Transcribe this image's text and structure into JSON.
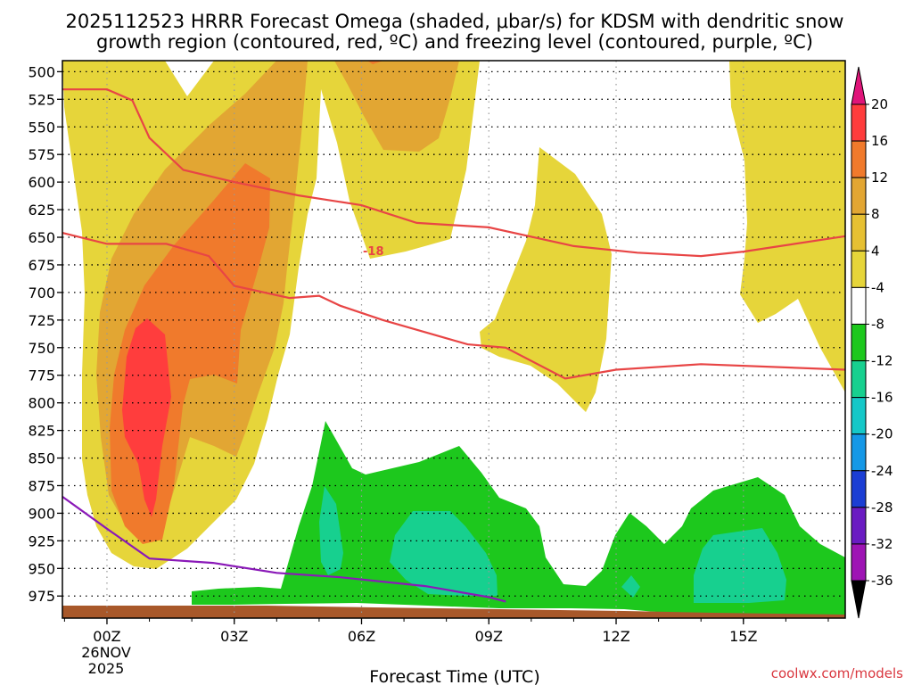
{
  "chart_data": {
    "type": "heatmap",
    "title_line1": "2025112523 HRRR Forecast Omega (shaded, μbar/s) for KDSM with dendritic snow",
    "title_line2": "growth region (contoured, red, ºC) and freezing level (contoured, purple, ºC)",
    "xlabel": "Forecast Time (UTC)",
    "x_ticks": [
      {
        "hour": 0,
        "label": "00Z"
      },
      {
        "hour": 3,
        "label": "03Z"
      },
      {
        "hour": 6,
        "label": "06Z"
      },
      {
        "hour": 9,
        "label": "09Z"
      },
      {
        "hour": 12,
        "label": "12Z"
      },
      {
        "hour": 15,
        "label": "15Z"
      }
    ],
    "x_date_lines": [
      "26NOV",
      "2025"
    ],
    "xlim": [
      -1.05,
      17.4
    ],
    "ylabel_ticks": [
      500,
      525,
      550,
      575,
      600,
      625,
      650,
      675,
      700,
      725,
      750,
      775,
      800,
      825,
      850,
      875,
      900,
      925,
      950,
      975
    ],
    "ylim_hpa": [
      490,
      995
    ],
    "colorbar": {
      "tick_labels": [
        "20",
        "16",
        "12",
        "8",
        "4",
        "-4",
        "-8",
        "-12",
        "-16",
        "-20",
        "-24",
        "-28",
        "-32",
        "-36"
      ],
      "boundaries": [
        20,
        16,
        12,
        8,
        4,
        -4,
        -8,
        -12,
        -16,
        -20,
        -24,
        -28,
        -32,
        -36
      ],
      "colors": [
        "#ff3d3d",
        "#f07a2c",
        "#e2a633",
        "#e6c033",
        "#e6d53a",
        "#ffffff",
        "#1dc81d",
        "#17d08f",
        "#15c8c8",
        "#1598e6",
        "#1b3ed4",
        "#6a1bc2",
        "#9e14b4",
        "#a8a8a8"
      ],
      "top_color": "#e0157a",
      "bottom_color": "#000000"
    },
    "contour_labels": [
      "-18"
    ],
    "dgz_top_line": [
      [
        -1.05,
        516
      ],
      [
        0.0,
        516
      ],
      [
        0.6,
        526
      ],
      [
        1.0,
        560
      ],
      [
        1.8,
        589
      ],
      [
        3.0,
        600
      ],
      [
        4.5,
        612
      ],
      [
        6.0,
        621
      ],
      [
        7.3,
        637
      ],
      [
        9.0,
        641
      ],
      [
        11.0,
        658
      ],
      [
        12.5,
        664
      ],
      [
        14.0,
        667
      ],
      [
        15.0,
        663
      ],
      [
        17.4,
        649
      ]
    ],
    "dgz_bottom_line": [
      [
        -1.05,
        646
      ],
      [
        0.0,
        656
      ],
      [
        1.4,
        656
      ],
      [
        2.4,
        667
      ],
      [
        3.0,
        694
      ],
      [
        4.3,
        705
      ],
      [
        5.0,
        703
      ],
      [
        5.5,
        712
      ],
      [
        6.5,
        725
      ],
      [
        8.5,
        747
      ],
      [
        9.4,
        750
      ],
      [
        10.8,
        778
      ],
      [
        12.0,
        770
      ],
      [
        14.0,
        765
      ],
      [
        17.4,
        770
      ]
    ],
    "freezing_line": [
      [
        -1.05,
        885
      ],
      [
        0.0,
        914
      ],
      [
        1.0,
        941
      ],
      [
        2.5,
        945
      ],
      [
        4.0,
        954
      ],
      [
        5.5,
        958
      ],
      [
        7.5,
        966
      ],
      [
        9.0,
        976
      ],
      [
        9.4,
        980
      ]
    ]
  },
  "credit": "coolwx.com/models",
  "colors": {
    "dgz_contour": "#e84545",
    "freezing_contour": "#8a19b8",
    "ground": "#a8582a"
  }
}
